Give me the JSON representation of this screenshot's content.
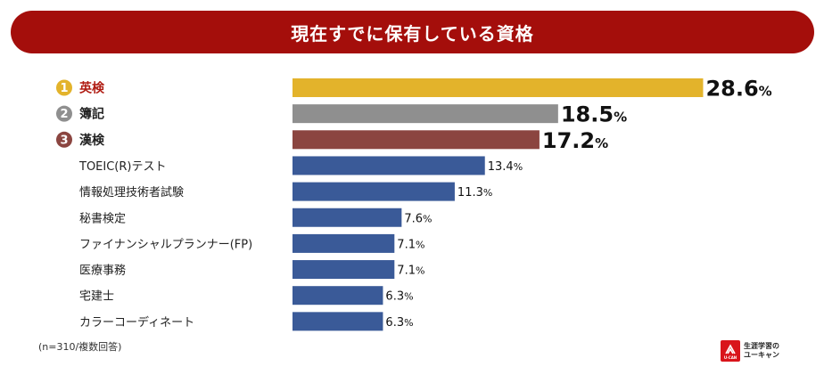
{
  "title": "現在すでに保有している資格",
  "footnote": "(n=310/複数回答)",
  "logo": {
    "mark_text": "U-CAN",
    "line1": "生涯学習の",
    "line2": "ユーキャン"
  },
  "colors": {
    "title_bar": "#a40e0b",
    "rank1": "#e3b32b",
    "rank2": "#8f8f8f",
    "rank3": "#8b4540",
    "others": "#3a5a98",
    "rank1_label": "#b01c13",
    "logo": "#d9141b"
  },
  "chart_data": {
    "type": "bar",
    "orientation": "horizontal",
    "title": "現在すでに保有している資格",
    "unit": "%",
    "categories": [
      "英検",
      "簿記",
      "漢検",
      "TOEIC(R)テスト",
      "情報処理技術者試験",
      "秘書検定",
      "ファイナンシャルプランナー(FP)",
      "医療事務",
      "宅建士",
      "カラーコーディネート"
    ],
    "values": [
      28.6,
      18.5,
      17.2,
      13.4,
      11.3,
      7.6,
      7.1,
      7.1,
      6.3,
      6.3
    ],
    "ranks": [
      "1",
      "2",
      "3"
    ],
    "data_labels": [
      "28.6",
      "18.5",
      "17.2",
      "13.4",
      "11.3",
      "7.6",
      "7.1",
      "7.1",
      "6.3",
      "6.3"
    ],
    "xlim": [
      0,
      30
    ],
    "grid": false,
    "legend": false
  }
}
